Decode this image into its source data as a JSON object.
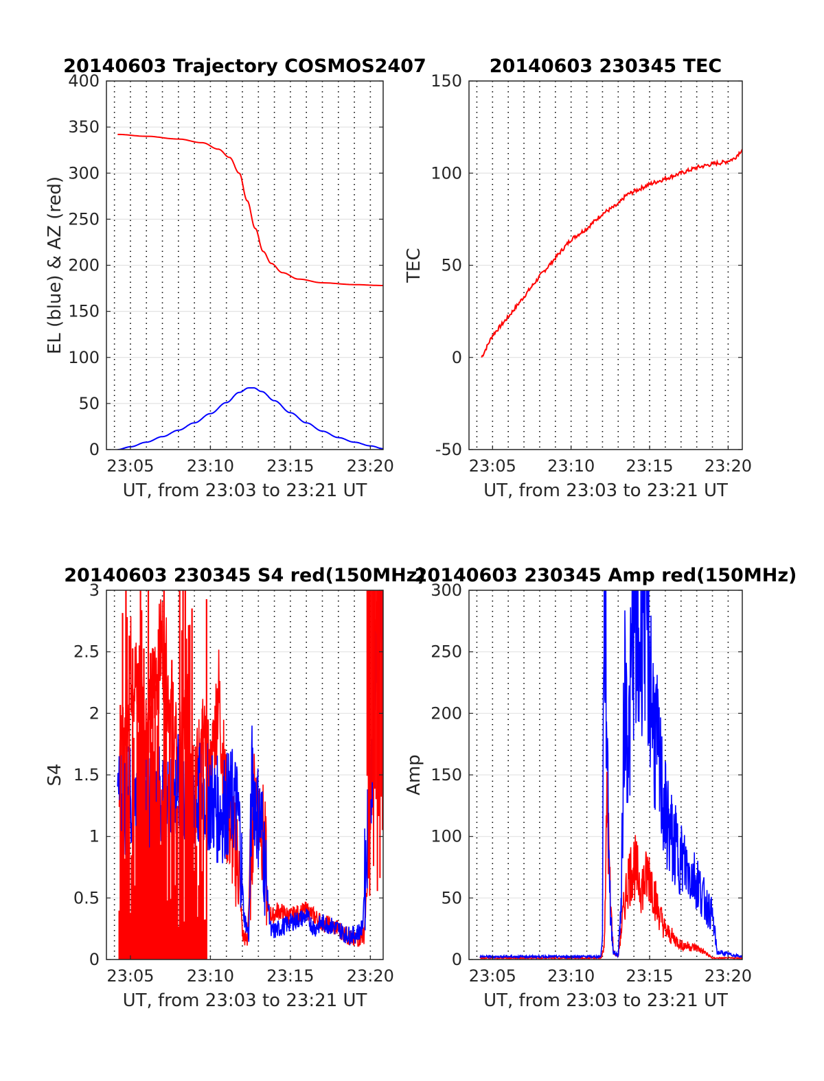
{
  "chart_data": [
    {
      "type": "line",
      "title": "20140603 Trajectory COSMOS2407",
      "xlabel": "UT, from 23:03 to 23:21 UT",
      "ylabel": "EL (blue) & AZ (red)",
      "xlim": [
        3.5,
        20.8
      ],
      "ylim": [
        0,
        400
      ],
      "x_ticks": [
        5,
        10,
        15,
        20
      ],
      "x_tick_labels": [
        "23:05",
        "23:10",
        "23:15",
        "23:20"
      ],
      "y_ticks": [
        0,
        50,
        100,
        150,
        200,
        250,
        300,
        350,
        400
      ],
      "y_tick_labels": [
        "0",
        "50",
        "100",
        "150",
        "200",
        "250",
        "300",
        "350",
        "400"
      ],
      "grid": "on",
      "series": [
        {
          "color": "#ff0000",
          "x": [
            4.2,
            6,
            8,
            9.5,
            10.5,
            11.2,
            11.8,
            12.3,
            12.8,
            13.3,
            13.8,
            14.5,
            15.5,
            17,
            19,
            20.8
          ],
          "y": [
            342,
            340,
            337,
            333,
            326,
            317,
            300,
            270,
            240,
            215,
            202,
            192,
            185,
            181,
            179,
            178
          ]
        },
        {
          "color": "#0000ff",
          "x": [
            4.2,
            5,
            6,
            7,
            8,
            9,
            10,
            11,
            11.8,
            12.4,
            12.7,
            13.2,
            14,
            15,
            16,
            17,
            18,
            19,
            20,
            20.8
          ],
          "y": [
            0,
            3,
            8,
            14,
            21,
            29,
            39,
            51,
            62,
            67,
            67,
            63,
            53,
            40,
            29,
            20,
            13,
            8,
            4,
            1
          ]
        }
      ]
    },
    {
      "type": "line",
      "title": "20140603 230345 TEC",
      "xlabel": "UT, from 23:03 to 23:21 UT",
      "ylabel": "TEC",
      "xlim": [
        3.5,
        20.9
      ],
      "ylim": [
        -50,
        150
      ],
      "x_ticks": [
        5,
        10,
        15,
        20
      ],
      "x_tick_labels": [
        "23:05",
        "23:10",
        "23:15",
        "23:20"
      ],
      "y_ticks": [
        -50,
        0,
        50,
        100,
        150
      ],
      "y_tick_labels": [
        "-50",
        "0",
        "50",
        "100",
        "150"
      ],
      "grid": "on",
      "series": [
        {
          "color": "#ff0000",
          "x": [
            4.3,
            5,
            6,
            7,
            8,
            9,
            10,
            11,
            12,
            13,
            13.5,
            14,
            15,
            16,
            17,
            18,
            19,
            19.8,
            20.4,
            20.9
          ],
          "y": [
            0,
            12,
            22,
            33,
            44,
            54,
            64,
            70,
            78,
            83,
            88,
            90,
            94,
            97,
            100,
            103,
            105,
            106,
            108,
            113
          ]
        }
      ]
    },
    {
      "type": "line",
      "title": "20140603 230345 S4 red(150MHz)",
      "xlabel": "UT, from 23:03 to 23:21 UT",
      "ylabel": "S4",
      "xlim": [
        3.5,
        20.8
      ],
      "ylim": [
        0,
        3
      ],
      "x_ticks": [
        5,
        10,
        15,
        20
      ],
      "x_tick_labels": [
        "23:05",
        "23:10",
        "23:15",
        "23:20"
      ],
      "y_ticks": [
        0,
        0.5,
        1,
        1.5,
        2,
        2.5,
        3
      ],
      "y_tick_labels": [
        "0",
        "0.5",
        "1",
        "1.5",
        "2",
        "2.5",
        "3"
      ],
      "grid": "on",
      "series": [
        {
          "color": "#ff0000",
          "x": [
            4.3,
            5,
            6,
            7,
            8,
            8.5,
            9,
            9.5,
            10,
            10.5,
            11,
            11.5,
            11.8,
            12,
            12.3,
            12.6,
            12.8,
            13.1,
            13.4,
            13.6,
            13.9,
            14.2,
            15,
            16,
            17,
            18,
            19,
            19.6,
            19.9,
            20.1,
            20.3,
            20.6
          ],
          "y": [
            1.3,
            2.4,
            1.9,
            2.6,
            1.5,
            2.0,
            1.3,
            1.8,
            1.4,
            2.2,
            1.2,
            0.9,
            0.75,
            0.2,
            0.15,
            1.0,
            1.4,
            1.2,
            0.9,
            0.4,
            0.35,
            0.4,
            0.35,
            0.4,
            0.3,
            0.25,
            0.15,
            0.2,
            0.8,
            1.4,
            2.5,
            3.0
          ]
        },
        {
          "color": "#0000ff",
          "x": [
            4.2,
            4.5,
            5,
            5.5,
            6,
            6.5,
            7,
            7.5,
            8,
            8.5,
            9,
            9.5,
            10,
            10.5,
            11,
            11.5,
            11.8,
            12.1,
            12.4,
            12.6,
            12.9,
            13.2,
            13.5,
            13.8,
            14.3,
            15,
            16,
            16.5,
            17,
            18,
            18.5,
            19,
            19.5,
            19.8,
            20.1,
            20.4,
            20.8
          ],
          "y": [
            1.3,
            1.2,
            1.4,
            1.3,
            1.2,
            1.35,
            1.3,
            1.25,
            1.4,
            1.3,
            1.25,
            1.35,
            1.3,
            1.2,
            1.25,
            1.3,
            1.1,
            0.35,
            0.2,
            1.5,
            1.2,
            1.1,
            0.6,
            0.22,
            0.25,
            0.3,
            0.35,
            0.25,
            0.3,
            0.25,
            0.2,
            0.2,
            0.25,
            1.0,
            1.6,
            2.5,
            3.0
          ]
        }
      ]
    },
    {
      "type": "line",
      "title": "20140603 230345 Amp red(150MHz)",
      "xlabel": "UT, from 23:03 to 23:21 UT",
      "ylabel": "Amp",
      "xlim": [
        3.5,
        20.9
      ],
      "ylim": [
        0,
        300
      ],
      "x_ticks": [
        5,
        10,
        15,
        20
      ],
      "x_tick_labels": [
        "23:05",
        "23:10",
        "23:15",
        "23:20"
      ],
      "y_ticks": [
        0,
        50,
        100,
        150,
        200,
        250,
        300
      ],
      "y_tick_labels": [
        "0",
        "50",
        "100",
        "150",
        "200",
        "250",
        "300"
      ],
      "grid": "on",
      "series": [
        {
          "color": "#ff0000",
          "x": [
            4.2,
            11.9,
            12.1,
            12.3,
            12.5,
            12.7,
            13.0,
            13.3,
            13.6,
            14.0,
            14.5,
            15.0,
            15.5,
            16.0,
            17.0,
            18.0,
            18.5,
            19.0,
            20.9
          ],
          "y": [
            1,
            1,
            8,
            110,
            40,
            5,
            2,
            30,
            55,
            65,
            50,
            60,
            35,
            20,
            10,
            8,
            5,
            1,
            1
          ]
        },
        {
          "color": "#0000ff",
          "x": [
            4.2,
            11.9,
            12.0,
            12.1,
            12.3,
            12.5,
            12.7,
            13.0,
            13.2,
            13.4,
            13.7,
            14.0,
            14.3,
            14.6,
            14.9,
            15.2,
            15.5,
            16.0,
            16.5,
            17.0,
            17.5,
            18.0,
            18.5,
            19.0,
            19.3,
            20.9
          ],
          "y": [
            2,
            2,
            20,
            280,
            150,
            30,
            5,
            3,
            40,
            190,
            150,
            250,
            200,
            270,
            220,
            170,
            140,
            100,
            80,
            70,
            60,
            55,
            40,
            30,
            5,
            2
          ]
        }
      ]
    }
  ]
}
